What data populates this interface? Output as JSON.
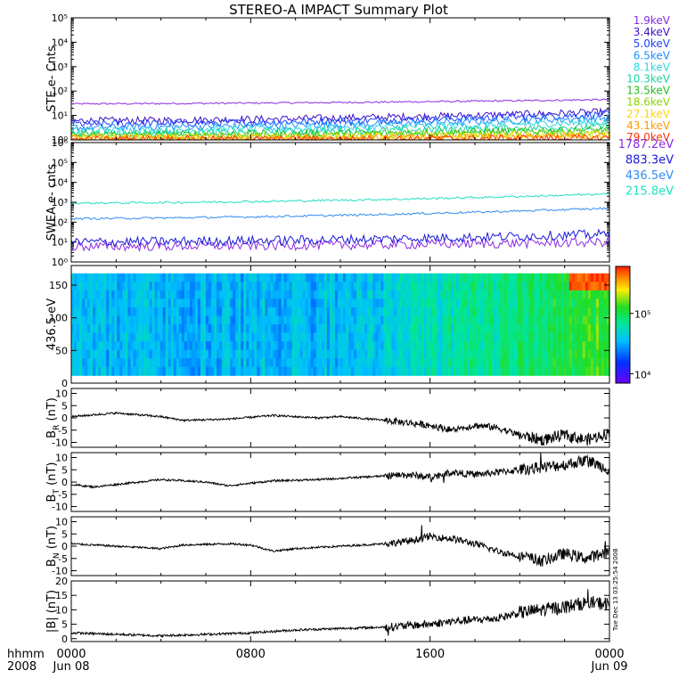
{
  "title": "STEREO-A IMPACT Summary Plot",
  "timestamp": "Tue Dec 13 03:25:54 2008",
  "colors": {
    "ste": [
      "#8a2be2",
      "#3d10c8",
      "#1f44ff",
      "#1e90ff",
      "#2dd4e6",
      "#17d6a0",
      "#22c020",
      "#8cd600",
      "#ffd700",
      "#ff9900",
      "#ff3300"
    ],
    "swea": [
      "#8a2be2",
      "#1a1ad8",
      "#2f8cf0",
      "#20e0c0"
    ],
    "field": "#000000",
    "axis": "#000000"
  },
  "x_axis": {
    "label_line1": "hhmm",
    "label_line2": "2008",
    "ticks": [
      {
        "time": "0000",
        "date": "Jun 08"
      },
      {
        "time": "0800",
        "date": ""
      },
      {
        "time": "1600",
        "date": ""
      },
      {
        "time": "0000",
        "date": "Jun 09"
      }
    ]
  },
  "chart_data": [
    {
      "id": "ste",
      "type": "line",
      "ylabel": "STE e- Cnts",
      "yscale": "log",
      "ylim": [
        1,
        100000
      ],
      "ytick_labels": [
        "10⁰",
        "10¹",
        "10²",
        "10³",
        "10⁴",
        "10⁵"
      ],
      "legend": [
        "1.9keV",
        "3.4keV",
        "5.0keV",
        "6.5keV",
        "8.1keV",
        "10.3keV",
        "13.5keV",
        "18.6keV",
        "27.1keV",
        "43.1keV",
        "79.0keV"
      ],
      "levels_start": [
        30,
        6,
        4.5,
        3.2,
        2.4,
        1.9,
        1.6,
        1.35,
        1.2,
        1.1,
        1.02
      ],
      "levels_end": [
        45,
        14,
        11,
        8,
        5.5,
        3.5,
        2.6,
        2.0,
        1.6,
        1.4,
        1.2
      ],
      "hours": [
        0,
        24
      ]
    },
    {
      "id": "swea",
      "type": "line",
      "ylabel": "SWEA e- cnts",
      "yscale": "log",
      "ylim": [
        1,
        1000000
      ],
      "ytick_labels": [
        "10⁰",
        "10¹",
        "10²",
        "10³",
        "10⁴",
        "10⁵",
        "10⁶"
      ],
      "legend": [
        "1787.2eV",
        "883.3eV",
        "436.5eV",
        "215.8eV"
      ],
      "levels_start": [
        6,
        10,
        150,
        900
      ],
      "levels_end": [
        10,
        25,
        500,
        2600
      ],
      "hours": [
        0,
        24
      ]
    },
    {
      "id": "pad",
      "type": "heatmap",
      "ylabel": "436.5 eV",
      "ylim": [
        0,
        180
      ],
      "yticks": [
        0,
        50,
        100,
        150
      ],
      "colorbar_ticks": [
        "10⁴",
        "10⁵"
      ],
      "colorbar_range": [
        7000,
        600000
      ]
    },
    {
      "id": "br",
      "type": "line",
      "ylabel": "B",
      "ylabel_sub": "R",
      "ylabel_unit": "(nT)",
      "ylim": [
        -12,
        12
      ],
      "yticks": [
        -10,
        -5,
        0,
        5,
        10
      ],
      "keypoints": [
        [
          0,
          0.5
        ],
        [
          2,
          2
        ],
        [
          4,
          0.5
        ],
        [
          5,
          -1
        ],
        [
          7,
          -0.5
        ],
        [
          9,
          1
        ],
        [
          11,
          0
        ],
        [
          12,
          0.5
        ],
        [
          14,
          -1
        ],
        [
          16,
          -3
        ],
        [
          17,
          -5
        ],
        [
          18,
          -3
        ],
        [
          19,
          -4
        ],
        [
          20,
          -7
        ],
        [
          21,
          -9
        ],
        [
          22,
          -7
        ],
        [
          23,
          -9
        ],
        [
          24,
          -6
        ]
      ]
    },
    {
      "id": "bt",
      "type": "line",
      "ylabel": "B",
      "ylabel_sub": "T",
      "ylabel_unit": "(nT)",
      "ylim": [
        -12,
        12
      ],
      "yticks": [
        -10,
        -5,
        0,
        5,
        10
      ],
      "keypoints": [
        [
          0,
          -1
        ],
        [
          1,
          -2
        ],
        [
          2,
          -1
        ],
        [
          4,
          1
        ],
        [
          6,
          0
        ],
        [
          7,
          -1.5
        ],
        [
          9,
          0.5
        ],
        [
          11,
          1
        ],
        [
          13,
          2
        ],
        [
          15,
          3
        ],
        [
          16,
          2
        ],
        [
          17,
          4
        ],
        [
          18,
          3
        ],
        [
          19,
          4
        ],
        [
          20,
          5
        ],
        [
          21,
          6
        ],
        [
          22,
          7
        ],
        [
          23,
          9
        ],
        [
          24,
          5
        ]
      ]
    },
    {
      "id": "bn",
      "type": "line",
      "ylabel": "B",
      "ylabel_sub": "N",
      "ylabel_unit": "(nT)",
      "ylim": [
        -12,
        12
      ],
      "yticks": [
        -10,
        -5,
        0,
        5,
        10
      ],
      "keypoints": [
        [
          0,
          1
        ],
        [
          2,
          0
        ],
        [
          4,
          -1
        ],
        [
          5,
          0.5
        ],
        [
          7,
          1
        ],
        [
          8,
          0.5
        ],
        [
          9,
          -2
        ],
        [
          10,
          -1
        ],
        [
          12,
          0
        ],
        [
          14,
          1
        ],
        [
          15,
          2
        ],
        [
          16,
          4
        ],
        [
          17,
          3
        ],
        [
          18,
          1
        ],
        [
          19,
          -2
        ],
        [
          20,
          -4
        ],
        [
          21,
          -6
        ],
        [
          22,
          -3
        ],
        [
          23,
          -5
        ],
        [
          24,
          -2
        ]
      ]
    },
    {
      "id": "bmag",
      "type": "line",
      "ylabel": "|B| (nT)",
      "ylim": [
        -1,
        20
      ],
      "yticks": [
        0,
        5,
        10,
        15,
        20
      ],
      "keypoints": [
        [
          0,
          2
        ],
        [
          2,
          1.5
        ],
        [
          4,
          1
        ],
        [
          6,
          1.5
        ],
        [
          8,
          2
        ],
        [
          10,
          3
        ],
        [
          12,
          3.5
        ],
        [
          14,
          4
        ],
        [
          16,
          5
        ],
        [
          17,
          6
        ],
        [
          18,
          6.5
        ],
        [
          19,
          7
        ],
        [
          20,
          9
        ],
        [
          21,
          10
        ],
        [
          22,
          11
        ],
        [
          23,
          12.5
        ],
        [
          24,
          12
        ]
      ]
    }
  ]
}
